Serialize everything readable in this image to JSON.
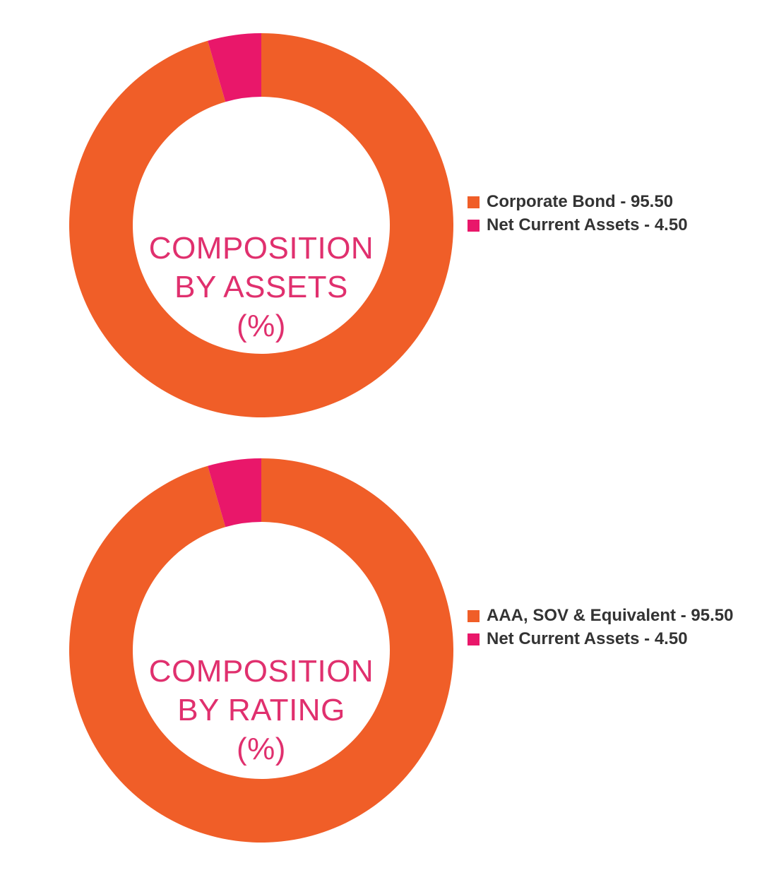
{
  "chart_data": [
    {
      "type": "pie",
      "title": "COMPOSITION BY ASSETS (%)",
      "title_lines": [
        "COMPOSITION",
        "BY ASSETS",
        "(%)"
      ],
      "donut": true,
      "categories": [
        "Corporate Bond",
        "Net Current Assets"
      ],
      "values": [
        95.5,
        4.5
      ],
      "colors": [
        "#f05e28",
        "#e9176a"
      ],
      "legend_labels": [
        "Corporate Bond - 95.50",
        "Net Current Assets - 4.50"
      ],
      "legend_position": "right"
    },
    {
      "type": "pie",
      "title": "COMPOSITION BY RATING (%)",
      "title_lines": [
        "COMPOSITION",
        "BY RATING",
        "(%)"
      ],
      "donut": true,
      "categories": [
        "AAA, SOV & Equivalent",
        "Net Current Assets"
      ],
      "values": [
        95.5,
        4.5
      ],
      "colors": [
        "#f05e28",
        "#e9176a"
      ],
      "legend_labels": [
        "AAA, SOV & Equivalent - 95.50",
        "Net Current Assets - 4.50"
      ],
      "legend_position": "right"
    }
  ],
  "colors": {
    "primary_slice": "#f05e28",
    "secondary_slice": "#e9176a",
    "center_text": "#e0306e",
    "legend_text": "#333333"
  }
}
